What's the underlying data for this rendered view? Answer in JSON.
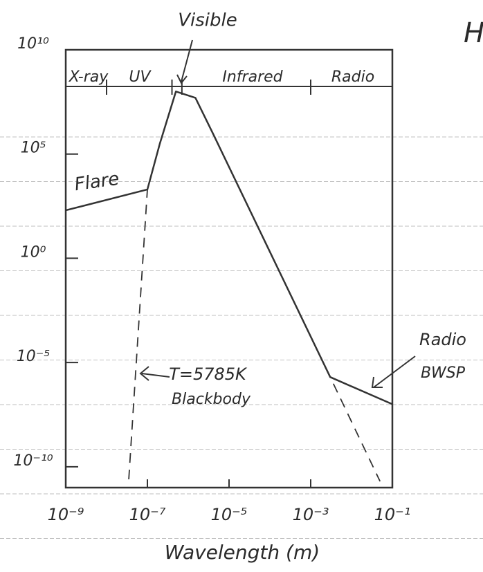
{
  "chart_data": {
    "type": "line",
    "x_label": "Wavelength (m)",
    "xscale": "log",
    "yscale": "log",
    "xlim": [
      1e-09,
      0.1
    ],
    "ylim": [
      1e-11,
      10000000000.0
    ],
    "xticks": [
      {
        "value": 1e-09,
        "label": "10⁻⁹"
      },
      {
        "value": 1e-07,
        "label": "10⁻⁷"
      },
      {
        "value": 1e-05,
        "label": "10⁻⁵"
      },
      {
        "value": 0.001,
        "label": "10⁻³"
      },
      {
        "value": 0.1,
        "label": "10⁻¹"
      }
    ],
    "yticks": [
      {
        "value": 10000000000.0,
        "label": "10¹⁰"
      },
      {
        "value": 100000.0,
        "label": "10⁵"
      },
      {
        "value": 1,
        "label": "10⁰"
      },
      {
        "value": 1e-05,
        "label": "10⁻⁵"
      },
      {
        "value": 1e-10,
        "label": "10⁻¹⁰"
      }
    ],
    "bands": [
      "X-ray",
      "UV",
      "Visible",
      "Infrared",
      "Radio"
    ],
    "band_edges": [
      1e-08,
      4e-07,
      7e-07,
      0.001
    ],
    "series": [
      {
        "color": "#333333",
        "style": "solid",
        "x": [
          1e-09,
          1e-07,
          2e-07,
          5e-07,
          1.5e-06,
          4e-06,
          0.003,
          0.1
        ],
        "values": [
          200,
          2000,
          300000,
          100000000,
          50000000,
          1000000,
          2e-06,
          1e-07
        ]
      },
      {
        "color": "#333333",
        "style": "dashed",
        "x": [
          3.5e-08,
          1e-07,
          2e-07,
          5e-07,
          1.5e-06,
          4e-06,
          0.003,
          0.05
        ],
        "values": [
          2.5e-11,
          2000,
          300000,
          100000000,
          50000000,
          1000000,
          2e-06,
          2e-11
        ]
      }
    ],
    "annotations": [
      "Flare",
      "T=5785K",
      "Blackbody",
      "Radio",
      "BWSP",
      "H"
    ]
  }
}
